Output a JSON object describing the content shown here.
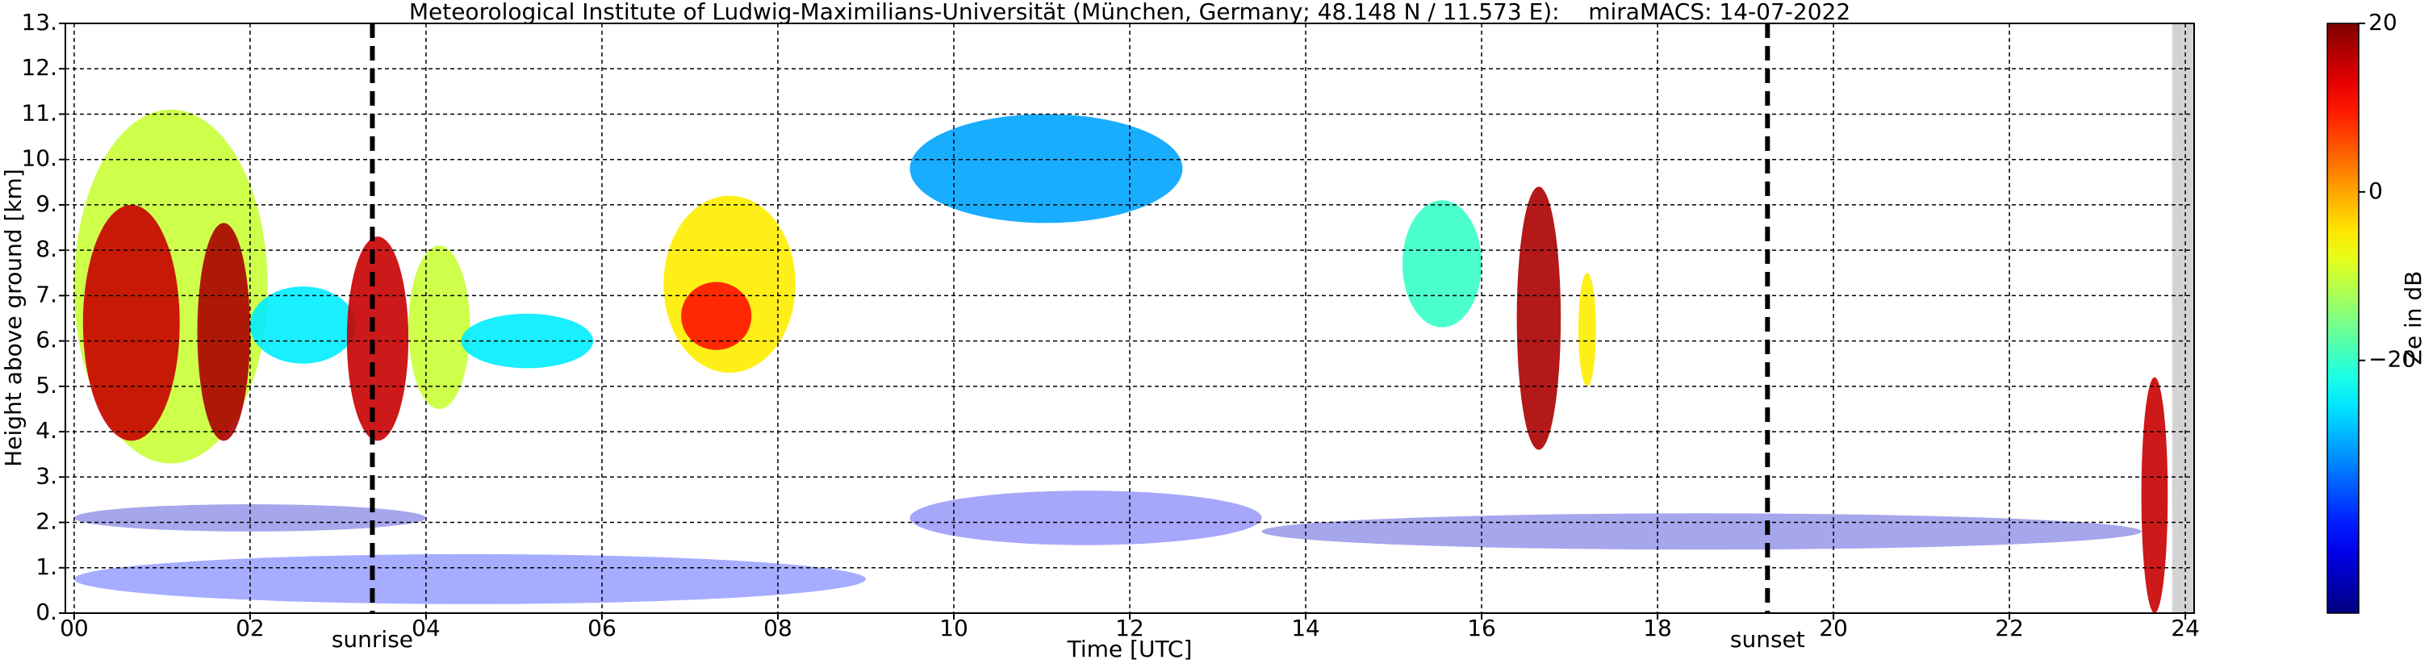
{
  "chart_data": {
    "type": "radar-time-height",
    "title": "Meteorological Institute of Ludwig-Maximilians-Universität (München, Germany; 48.148 N / 11.573 E):    miraMACS: 14-07-2022",
    "x_label": "Time [UTC]",
    "y_label": "Height above ground [km]",
    "colorbar_label": "Ze in dB",
    "xlim": [
      -0.1,
      24.1
    ],
    "xticks": [
      {
        "value": 0,
        "label": "00"
      },
      {
        "value": 2,
        "label": "02"
      },
      {
        "value": 4,
        "label": "04"
      },
      {
        "value": 6,
        "label": "06"
      },
      {
        "value": 8,
        "label": "08"
      },
      {
        "value": 10,
        "label": "10"
      },
      {
        "value": 12,
        "label": "12"
      },
      {
        "value": 14,
        "label": "14"
      },
      {
        "value": 16,
        "label": "16"
      },
      {
        "value": 18,
        "label": "18"
      },
      {
        "value": 20,
        "label": "20"
      },
      {
        "value": 22,
        "label": "22"
      },
      {
        "value": 24,
        "label": "24"
      }
    ],
    "ylim": [
      0,
      13
    ],
    "yticks": [
      {
        "value": 0,
        "label": "0."
      },
      {
        "value": 1,
        "label": "1."
      },
      {
        "value": 2,
        "label": "2."
      },
      {
        "value": 3,
        "label": "3."
      },
      {
        "value": 4,
        "label": "4."
      },
      {
        "value": 5,
        "label": "5."
      },
      {
        "value": 6,
        "label": "6."
      },
      {
        "value": 7,
        "label": "7."
      },
      {
        "value": 8,
        "label": "8."
      },
      {
        "value": 9,
        "label": "9."
      },
      {
        "value": 10,
        "label": "10."
      },
      {
        "value": 11,
        "label": "11."
      },
      {
        "value": 12,
        "label": "12."
      },
      {
        "value": 13,
        "label": "13."
      }
    ],
    "clim": [
      -50,
      20
    ],
    "cticks": [
      {
        "value": -20,
        "label": "−20"
      },
      0,
      20
    ],
    "grid": true,
    "no_data_range": [
      23.85,
      24.1
    ],
    "annotations": [
      {
        "label": "sunrise",
        "x": 3.39
      },
      {
        "label": "sunset",
        "x": 19.25
      }
    ],
    "echoes": [
      {
        "x": [
          0.0,
          2.2
        ],
        "y": [
          3.3,
          11.1
        ],
        "value": -10
      },
      {
        "x": [
          0.1,
          1.2
        ],
        "y": [
          3.8,
          9.0
        ],
        "value": 15
      },
      {
        "x": [
          1.4,
          2.0
        ],
        "y": [
          3.8,
          8.6
        ],
        "value": 17
      },
      {
        "x": [
          2.0,
          3.2
        ],
        "y": [
          5.5,
          7.2
        ],
        "value": -25
      },
      {
        "x": [
          3.1,
          3.8
        ],
        "y": [
          3.8,
          8.3
        ],
        "value": 15
      },
      {
        "x": [
          3.8,
          4.5
        ],
        "y": [
          4.5,
          8.1
        ],
        "value": -10
      },
      {
        "x": [
          4.4,
          5.9
        ],
        "y": [
          5.4,
          6.6
        ],
        "value": -25
      },
      {
        "x": [
          6.7,
          8.2
        ],
        "y": [
          5.3,
          9.2
        ],
        "value": -5
      },
      {
        "x": [
          6.9,
          7.7
        ],
        "y": [
          5.8,
          7.3
        ],
        "value": 10
      },
      {
        "x": [
          9.5,
          12.6
        ],
        "y": [
          8.6,
          11.0
        ],
        "value": -30
      },
      {
        "x": [
          15.1,
          16.0
        ],
        "y": [
          6.3,
          9.1
        ],
        "value": -20
      },
      {
        "x": [
          16.4,
          16.9
        ],
        "y": [
          3.6,
          9.4
        ],
        "value": 17
      },
      {
        "x": [
          17.1,
          17.3
        ],
        "y": [
          5.0,
          7.5
        ],
        "value": -5
      },
      {
        "x": [
          23.5,
          23.8
        ],
        "y": [
          0.0,
          5.2
        ],
        "value": 15
      },
      {
        "x": [
          0.0,
          4.0
        ],
        "y": [
          1.8,
          2.4
        ],
        "value": -45
      },
      {
        "x": [
          9.5,
          13.5
        ],
        "y": [
          1.5,
          2.7
        ],
        "value": -42
      },
      {
        "x": [
          0.0,
          9.0
        ],
        "y": [
          0.2,
          1.3
        ],
        "value": -40
      },
      {
        "x": [
          13.5,
          23.5
        ],
        "y": [
          1.4,
          2.2
        ],
        "value": -45
      }
    ]
  }
}
